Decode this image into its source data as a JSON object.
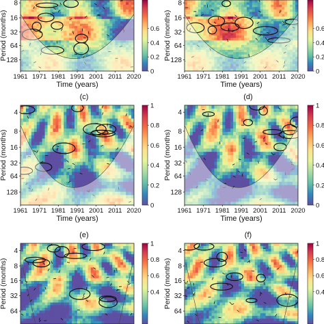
{
  "chart_data": [
    {
      "type": "heatmap",
      "panel_label": "",
      "xlabel": "Time (years)",
      "ylabel": "Period (months)",
      "xticks": [
        "1961",
        "1971",
        "1981",
        "1991",
        "2001",
        "2011",
        "2020"
      ],
      "yticks": [
        "8",
        "16",
        "32",
        "64",
        "128"
      ],
      "colorbar_ticks": [
        "0",
        "0.2",
        "0.4",
        "0.6"
      ],
      "zlim": [
        0,
        1
      ],
      "log_y": true
    },
    {
      "type": "heatmap",
      "panel_label": "",
      "xlabel": "Time (years)",
      "ylabel": "Period (months)",
      "xticks": [
        "1961",
        "1971",
        "1981",
        "1991",
        "2001",
        "2011",
        "2020"
      ],
      "yticks": [
        "8",
        "16",
        "32",
        "64",
        "128"
      ],
      "colorbar_ticks": [
        "0",
        "0.2",
        "0.4",
        "0.6"
      ],
      "zlim": [
        0,
        1
      ],
      "log_y": true
    },
    {
      "type": "heatmap",
      "panel_label": "(c)",
      "xlabel": "Time (years)",
      "ylabel": "Period (months)",
      "xticks": [
        "1961",
        "1971",
        "1981",
        "1991",
        "2001",
        "2011",
        "2020"
      ],
      "yticks": [
        "4",
        "8",
        "16",
        "32",
        "64",
        "128"
      ],
      "colorbar_ticks": [
        "0",
        "0.2",
        "0.4",
        "0.6",
        "0.8",
        "1"
      ],
      "zlim": [
        0,
        1
      ],
      "log_y": true
    },
    {
      "type": "heatmap",
      "panel_label": "(d)",
      "xlabel": "Time (years)",
      "ylabel": "Period (months)",
      "xticks": [
        "1961",
        "1971",
        "1981",
        "1991",
        "2001",
        "2011",
        "2020"
      ],
      "yticks": [
        "4",
        "8",
        "16",
        "32",
        "64",
        "128"
      ],
      "colorbar_ticks": [
        "0",
        "0.2",
        "0.4",
        "0.6",
        "0.8",
        "1"
      ],
      "zlim": [
        0,
        1
      ],
      "log_y": true
    },
    {
      "type": "heatmap",
      "panel_label": "(e)",
      "xlabel": "",
      "ylabel": "Period (months)",
      "xticks": [],
      "yticks": [
        "4",
        "8",
        "16",
        "32",
        "64"
      ],
      "colorbar_ticks": [
        "0.4",
        "0.6",
        "0.8",
        "1"
      ],
      "zlim": [
        0,
        1
      ],
      "log_y": true
    },
    {
      "type": "heatmap",
      "panel_label": "(f)",
      "xlabel": "",
      "ylabel": "Period (months)",
      "xticks": [],
      "yticks": [
        "4",
        "8",
        "16",
        "32",
        "64"
      ],
      "colorbar_ticks": [
        "0.4",
        "0.6",
        "0.8",
        "1"
      ],
      "zlim": [
        0,
        1
      ],
      "log_y": true
    }
  ],
  "colormap": [
    "#5e4fa2",
    "#3288bd",
    "#66c2a5",
    "#abdda4",
    "#e6f598",
    "#fee08b",
    "#fdae61",
    "#f46d43",
    "#d53e4f",
    "#9e0142"
  ]
}
